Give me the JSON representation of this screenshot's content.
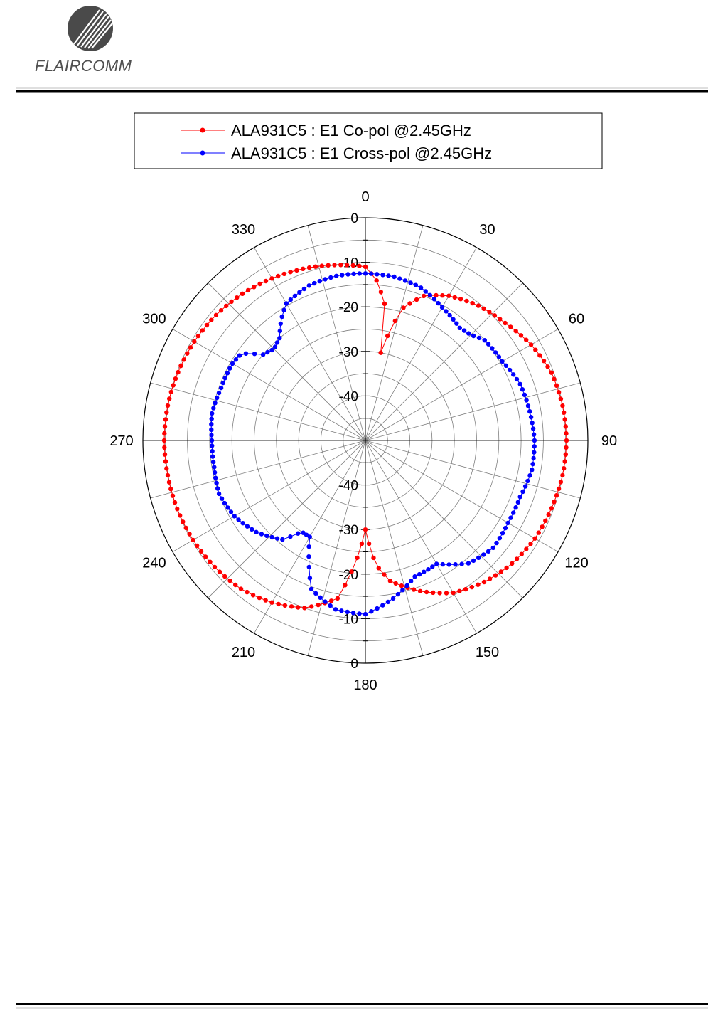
{
  "header": {
    "logo_text": "FLAIRCOMM"
  },
  "colors": {
    "co_pol": "#ff0000",
    "cross_pol": "#0000ff",
    "grid": "#7f7f7f",
    "frame": "#000000"
  },
  "chart_data": {
    "type": "polar",
    "angle_direction": "clockwise",
    "zero_at": "top",
    "r_min": -50,
    "r_max": 0,
    "angle_ticks": [
      0,
      30,
      60,
      90,
      120,
      150,
      180,
      210,
      240,
      270,
      300,
      330
    ],
    "r_ticks": [
      0,
      -10,
      -20,
      -30,
      -40
    ],
    "grid": true,
    "legend_position": "top",
    "series": [
      {
        "name": "ALA931C5 : E1 Co-pol @2.45GHz",
        "color": "#ff0000",
        "points": [
          [
            0,
            -11
          ],
          [
            4,
            -14
          ],
          [
            8,
            -19
          ],
          [
            10,
            -30
          ],
          [
            13,
            -24
          ],
          [
            16,
            -19
          ],
          [
            22,
            -15
          ],
          [
            30,
            -12.5
          ],
          [
            40,
            -10.5
          ],
          [
            50,
            -9
          ],
          [
            60,
            -7
          ],
          [
            70,
            -5.5
          ],
          [
            80,
            -5
          ],
          [
            90,
            -4.8
          ],
          [
            100,
            -5
          ],
          [
            110,
            -5.5
          ],
          [
            120,
            -6
          ],
          [
            130,
            -7
          ],
          [
            140,
            -8.5
          ],
          [
            150,
            -10.5
          ],
          [
            160,
            -14
          ],
          [
            170,
            -18
          ],
          [
            175,
            -22
          ],
          [
            180,
            -30
          ],
          [
            185,
            -22
          ],
          [
            190,
            -14
          ],
          [
            200,
            -10
          ],
          [
            210,
            -8
          ],
          [
            220,
            -6.5
          ],
          [
            230,
            -5.8
          ],
          [
            240,
            -5.3
          ],
          [
            250,
            -5
          ],
          [
            260,
            -4.9
          ],
          [
            270,
            -4.8
          ],
          [
            280,
            -4.9
          ],
          [
            290,
            -5.2
          ],
          [
            300,
            -5.6
          ],
          [
            310,
            -6.2
          ],
          [
            320,
            -7
          ],
          [
            330,
            -8
          ],
          [
            340,
            -9
          ],
          [
            350,
            -10
          ],
          [
            355,
            -10.5
          ]
        ]
      },
      {
        "name": "ALA931C5 : E1 Cross-pol @2.45GHz",
        "color": "#0000ff",
        "points": [
          [
            0,
            -12.5
          ],
          [
            10,
            -12.7
          ],
          [
            20,
            -13.5
          ],
          [
            30,
            -15.5
          ],
          [
            40,
            -17
          ],
          [
            45,
            -16.5
          ],
          [
            50,
            -15
          ],
          [
            60,
            -14.5
          ],
          [
            70,
            -13
          ],
          [
            80,
            -12.5
          ],
          [
            90,
            -12
          ],
          [
            100,
            -12
          ],
          [
            110,
            -13
          ],
          [
            120,
            -13
          ],
          [
            130,
            -12.5
          ],
          [
            140,
            -14
          ],
          [
            150,
            -18
          ],
          [
            160,
            -17.5
          ],
          [
            170,
            -14
          ],
          [
            180,
            -11
          ],
          [
            190,
            -11.5
          ],
          [
            200,
            -14.5
          ],
          [
            205,
            -20
          ],
          [
            210,
            -25
          ],
          [
            215,
            -25
          ],
          [
            220,
            -21
          ],
          [
            230,
            -18
          ],
          [
            240,
            -16
          ],
          [
            250,
            -15
          ],
          [
            260,
            -15.5
          ],
          [
            270,
            -15.5
          ],
          [
            280,
            -15
          ],
          [
            290,
            -15.5
          ],
          [
            300,
            -15.5
          ],
          [
            305,
            -16
          ],
          [
            310,
            -20
          ],
          [
            315,
            -21
          ],
          [
            320,
            -20
          ],
          [
            325,
            -17
          ],
          [
            330,
            -14.5
          ],
          [
            340,
            -13
          ],
          [
            350,
            -12.5
          ],
          [
            355,
            -12.5
          ]
        ]
      }
    ]
  }
}
